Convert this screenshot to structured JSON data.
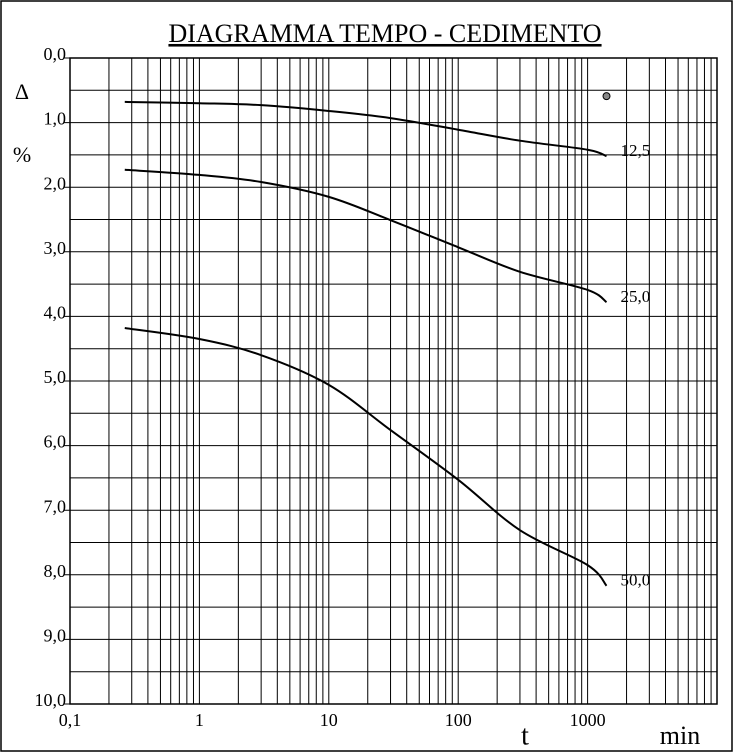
{
  "chart_data": {
    "type": "line",
    "title": "DIAGRAMMA  TEMPO - CEDIMENTO",
    "y_label": [
      "Δ",
      "%"
    ],
    "x_label": [
      "t",
      "min"
    ],
    "log_x": true,
    "y_inverted": true,
    "grid": true,
    "color": "#000000",
    "xlim": [
      0.1,
      10000
    ],
    "xticks": [
      {
        "value": 0.1,
        "label": "0,1"
      },
      1,
      10,
      100,
      1000
    ],
    "x_minor_ticks": [
      0.2,
      0.3,
      0.4,
      0.5,
      0.6,
      0.7,
      0.8,
      0.9,
      2,
      3,
      4,
      5,
      6,
      7,
      8,
      9,
      20,
      30,
      40,
      50,
      60,
      70,
      80,
      90,
      200,
      300,
      400,
      500,
      600,
      700,
      800,
      900,
      2000,
      3000,
      4000,
      5000,
      6000,
      7000,
      8000,
      9000
    ],
    "ylim": [
      0,
      10
    ],
    "yticks": [
      {
        "value": 0,
        "label": "0,0"
      },
      {
        "value": 1,
        "label": "1,0"
      },
      {
        "value": 2,
        "label": "2,0"
      },
      {
        "value": 3,
        "label": "3,0"
      },
      {
        "value": 4,
        "label": "4,0"
      },
      {
        "value": 5,
        "label": "5,0"
      },
      {
        "value": 6,
        "label": "6,0"
      },
      {
        "value": 7,
        "label": "7,0"
      },
      {
        "value": 8,
        "label": "8,0"
      },
      {
        "value": 9,
        "label": "9,0"
      },
      {
        "value": 10,
        "label": "10,0"
      }
    ],
    "y_minor_ticks": [
      0.5,
      1.5,
      2.5,
      3.5,
      4.5,
      5.5,
      6.5,
      7.5,
      8.5,
      9.5
    ],
    "x": [
      0.265,
      1,
      3,
      10,
      30,
      100,
      300,
      1000,
      1400
    ],
    "series": [
      {
        "name": "12,5",
        "values": [
          0.68,
          0.7,
          0.73,
          0.82,
          0.93,
          1.11,
          1.28,
          1.42,
          1.52
        ]
      },
      {
        "name": "25,0",
        "values": [
          1.73,
          1.81,
          1.92,
          2.15,
          2.51,
          2.93,
          3.31,
          3.59,
          3.78
        ]
      },
      {
        "name": "50,0",
        "values": [
          4.18,
          4.35,
          4.6,
          5.06,
          5.76,
          6.53,
          7.31,
          7.85,
          8.17
        ]
      }
    ],
    "point": {
      "x": 1400,
      "y": 0.59,
      "color": "#888888"
    }
  }
}
